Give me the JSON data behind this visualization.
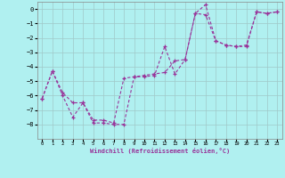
{
  "xlabel": "Windchill (Refroidissement éolien,°C)",
  "bg_color": "#b0f0f0",
  "grid_color": "#a0c8c8",
  "line_color": "#993399",
  "x_hours": [
    0,
    1,
    2,
    3,
    4,
    5,
    6,
    7,
    8,
    9,
    10,
    11,
    12,
    13,
    14,
    15,
    16,
    17,
    18,
    19,
    20,
    21,
    22,
    23
  ],
  "line1_y": [
    -6.2,
    -4.3,
    -6.0,
    -7.5,
    -6.5,
    -7.9,
    -7.9,
    -8.0,
    -8.0,
    -4.7,
    -4.7,
    -4.6,
    -2.6,
    -4.5,
    -3.5,
    -0.3,
    0.3,
    -2.2,
    -2.5,
    -2.6,
    -2.6,
    -0.2,
    -0.3,
    -0.2
  ],
  "line2_y": [
    -6.2,
    -4.3,
    -5.8,
    -6.5,
    -6.5,
    -7.7,
    -7.7,
    -7.9,
    -4.8,
    -4.7,
    -4.6,
    -4.5,
    -4.4,
    -3.6,
    -3.5,
    -0.3,
    -0.4,
    -2.2,
    -2.5,
    -2.6,
    -2.5,
    -0.2,
    -0.3,
    -0.2
  ],
  "ylim": [
    -9,
    0.5
  ],
  "xlim": [
    -0.5,
    23.5
  ],
  "yticks": [
    0,
    -1,
    -2,
    -3,
    -4,
    -5,
    -6,
    -7,
    -8
  ],
  "xticks": [
    0,
    1,
    2,
    3,
    4,
    5,
    6,
    7,
    8,
    9,
    10,
    11,
    12,
    13,
    14,
    15,
    16,
    17,
    18,
    19,
    20,
    21,
    22,
    23
  ],
  "marker": "+"
}
